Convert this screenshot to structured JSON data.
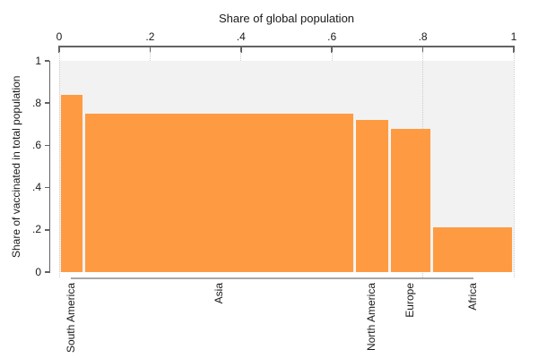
{
  "chart_data": {
    "type": "bar",
    "subtype": "mosaic-variable-width-bars",
    "x_axis": {
      "title": "Share of global population",
      "position": "top",
      "range": [
        0,
        1
      ],
      "ticks": [
        {
          "label": "0",
          "value": 0,
          "gridline": "full"
        },
        {
          "label": ".2",
          "value": 0.2,
          "gridline": "stub"
        },
        {
          "label": ".4",
          "value": 0.4,
          "gridline": "stub"
        },
        {
          "label": ".6",
          "value": 0.6,
          "gridline": "stub"
        },
        {
          "label": ".8",
          "value": 0.8,
          "gridline": "full"
        },
        {
          "label": "1",
          "value": 1,
          "gridline": "full"
        }
      ]
    },
    "y_axis": {
      "title": "Share of vaccinated in total population",
      "position": "left",
      "range": [
        0,
        1
      ],
      "ticks": [
        {
          "label": "1",
          "value": 1
        },
        {
          "label": ".8",
          "value": 0.8
        },
        {
          "label": ".6",
          "value": 0.6
        },
        {
          "label": ".4",
          "value": 0.4
        },
        {
          "label": ".2",
          "value": 0.2
        },
        {
          "label": "0",
          "value": 0
        }
      ]
    },
    "bars": [
      {
        "category": "South America",
        "population_share": 0.055,
        "vaccinated_share": 0.84
      },
      {
        "category": "Asia",
        "population_share": 0.595,
        "vaccinated_share": 0.75
      },
      {
        "category": "North America",
        "population_share": 0.076,
        "vaccinated_share": 0.72
      },
      {
        "category": "Europe",
        "population_share": 0.094,
        "vaccinated_share": 0.68
      },
      {
        "category": "Africa",
        "population_share": 0.18,
        "vaccinated_share": 0.21
      }
    ],
    "layout": {
      "grid": "vertical-dotted",
      "legend": "none"
    },
    "colors": {
      "bar": "#fe9b42",
      "bar_gap": "#ffffff",
      "plot_background": "#f2f2f2",
      "axis_line": "#636363",
      "category_axis_line": "#a9a9a9",
      "gridline": "#cccccc",
      "text": "#1a1a1a",
      "background": "#ffffff"
    }
  }
}
